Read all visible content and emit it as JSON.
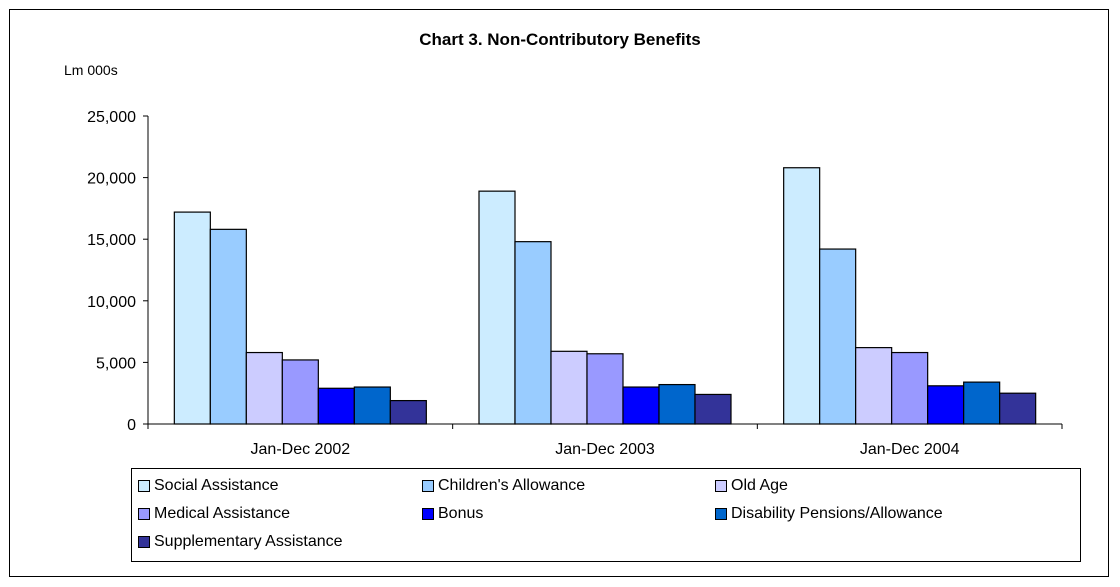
{
  "chart_data": {
    "type": "bar",
    "title": "Chart 3.  Non-Contributory Benefits",
    "ylabel": "Lm 000s",
    "xlabel": "",
    "categories": [
      "Jan-Dec 2002",
      "Jan-Dec 2003",
      "Jan-Dec 2004"
    ],
    "ylim": [
      0,
      25000
    ],
    "yticks": [
      "0",
      "5,000",
      "10,000",
      "15,000",
      "20,000",
      "25,000"
    ],
    "ytick_values": [
      0,
      5000,
      10000,
      15000,
      20000,
      25000
    ],
    "grid": false,
    "legend_position": "bottom",
    "series": [
      {
        "name": "Social Assistance",
        "color": "#CCECFF",
        "values": [
          17200,
          18900,
          20800
        ]
      },
      {
        "name": "Children's Allowance",
        "color": "#99CCFF",
        "values": [
          15800,
          14800,
          14200
        ]
      },
      {
        "name": "Old Age",
        "color": "#CCCCFF",
        "values": [
          5800,
          5900,
          6200
        ]
      },
      {
        "name": "Medical Assistance",
        "color": "#9999FF",
        "values": [
          5200,
          5700,
          5800
        ]
      },
      {
        "name": "Bonus",
        "color": "#0000FF",
        "values": [
          2900,
          3000,
          3100
        ]
      },
      {
        "name": "Disability Pensions/Allowance",
        "color": "#0066CC",
        "values": [
          3000,
          3200,
          3400
        ]
      },
      {
        "name": "Supplementary Assistance",
        "color": "#333399",
        "values": [
          1900,
          2400,
          2500
        ]
      }
    ]
  }
}
